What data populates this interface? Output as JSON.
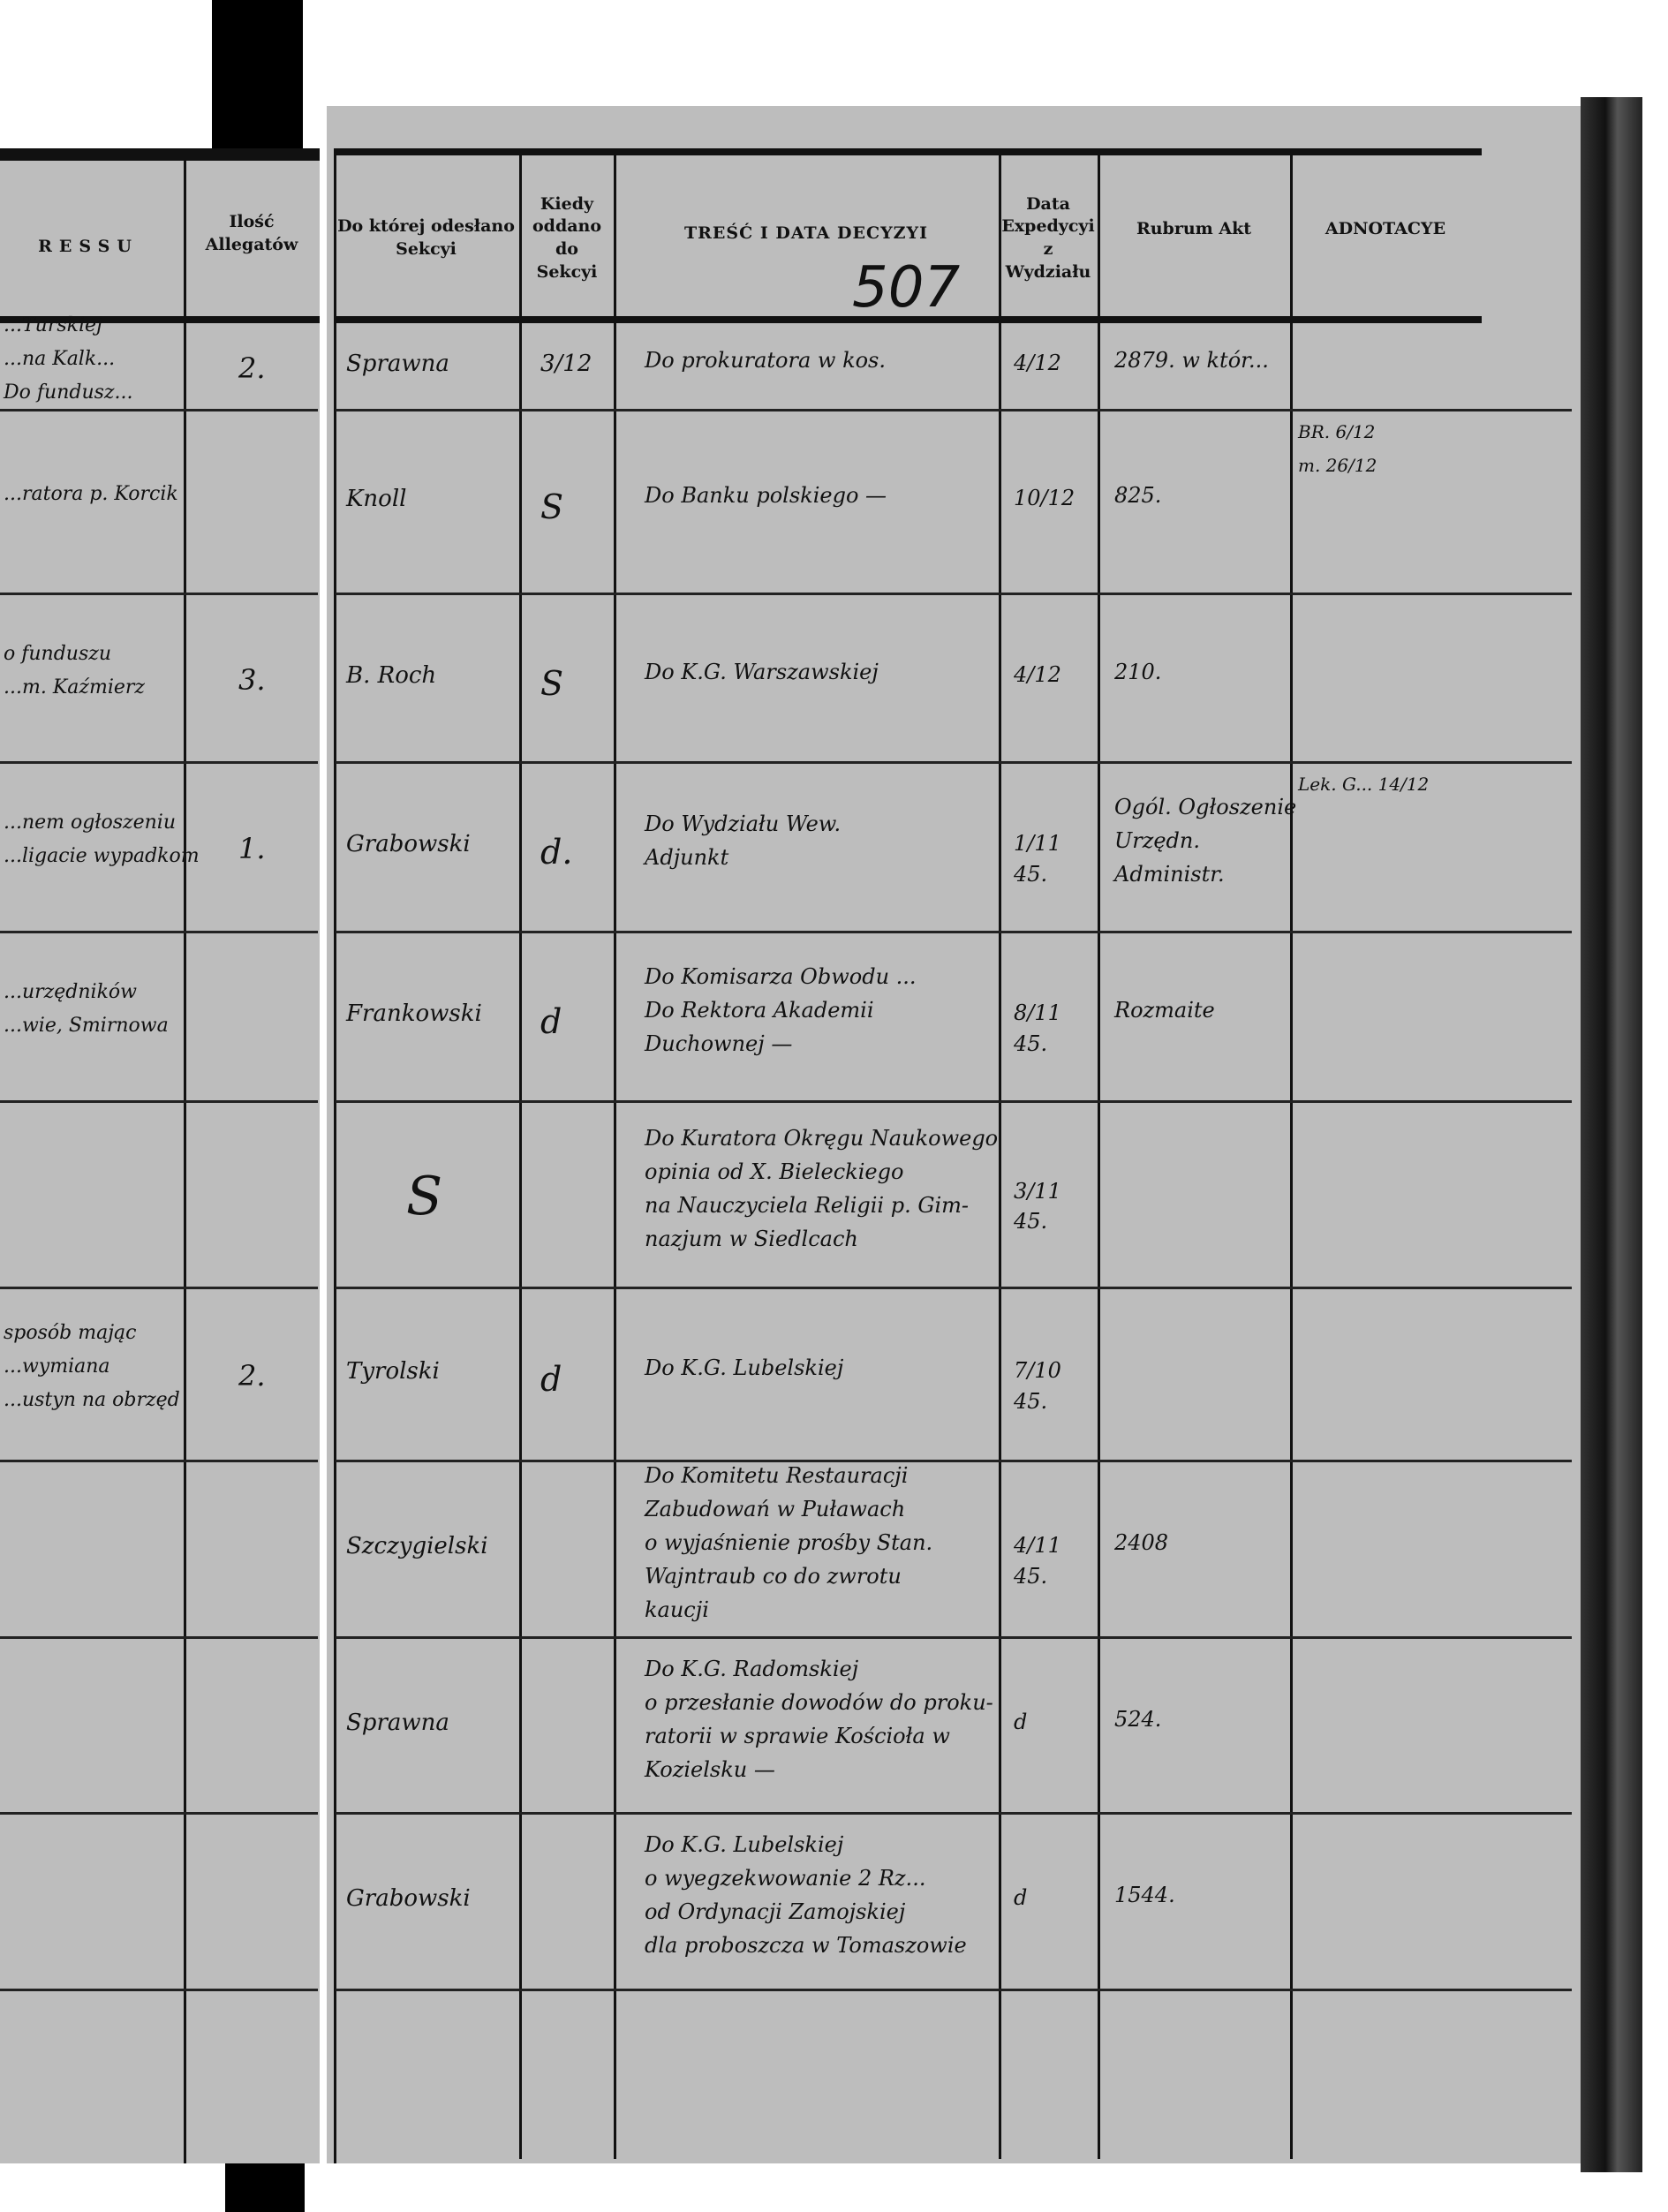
{
  "page_number": "507",
  "left_page": {
    "header_fragment": "RESSU",
    "count_header": "Ilość Allegatów",
    "rows": [
      {
        "text": [
          "...Turskiej",
          "...na Kalk...",
          "Do fundusz..."
        ],
        "count": "2."
      },
      {
        "text": [
          "...ratora p. Korcik"
        ],
        "count": ""
      },
      {
        "text": [
          "o funduszu",
          "...m. Kaźmierz"
        ],
        "count": "3."
      },
      {
        "text": [
          "...nem ogłoszeniu",
          "...ligacie wypadkom"
        ],
        "count": "1."
      },
      {
        "text": [
          "...urzędników",
          "...wie, Smirnowa"
        ],
        "count": ""
      },
      {
        "text": [],
        "count": ""
      },
      {
        "text": [
          "sposób mając",
          "...wymiana",
          "...ustyn na obrzęd"
        ],
        "count": "2."
      }
    ]
  },
  "headers": {
    "section": "Do której odesłano Sekcyi",
    "when": "Kiedy oddano do Sekcyi",
    "content": "TREŚĆ I DATA DECYZYI",
    "expedition": "Data Expedycyi z Wydziału",
    "rubrum": "Rubrum Akt",
    "notes": "ADNOTACYE"
  },
  "rows": [
    {
      "section": "Sprawna",
      "when": "3/12",
      "content": [
        "Do prokuratora w kos."
      ],
      "exp": "4/12",
      "rubrum": [
        "2879. w któr..."
      ],
      "notes": []
    },
    {
      "section": "Knoll",
      "when": "S",
      "content": [
        "Do Banku polskiego —"
      ],
      "exp": "10/12",
      "rubrum": [
        "825."
      ],
      "notes": [
        "BR. 6/12",
        "m. 26/12"
      ]
    },
    {
      "section": "B. Roch",
      "when": "S",
      "content": [
        "Do K.G. Warszawskiej"
      ],
      "exp": "4/12",
      "rubrum": [
        "210."
      ],
      "notes": []
    },
    {
      "section": "Grabowski",
      "when": "d.",
      "content": [
        "Do Wydziału Wew.",
        "Adjunkt"
      ],
      "exp": "1/11 45.",
      "rubrum": [
        "Ogól. Ogłoszenie",
        "Urzędn.",
        "Administr."
      ],
      "notes": [
        "Lek. G... 14/12"
      ]
    },
    {
      "section": "Frankowski",
      "when": "d",
      "content": [
        "Do Komisarza Obwodu ...",
        "Do Rektora Akademii",
        "Duchownej —"
      ],
      "exp": "8/11 45.",
      "rubrum": [
        "Rozmaite"
      ],
      "notes": []
    },
    {
      "section": "S",
      "when": "",
      "content": [
        "Do Kuratora Okręgu Naukowego",
        "opinia od X. Bieleckiego",
        "na Nauczyciela Religii p. Gim-",
        "nazjum w Siedlcach"
      ],
      "exp": "3/11 45.",
      "rubrum": [],
      "notes": []
    },
    {
      "section": "Tyrolski",
      "when": "d",
      "content": [
        "Do K.G. Lubelskiej"
      ],
      "exp": "7/10 45.",
      "rubrum": [],
      "notes": []
    },
    {
      "section": "Szczygielski",
      "when": "",
      "content": [
        "Do Komitetu Restauracji",
        "Zabudowań w Puławach",
        "o wyjaśnienie prośby Stan.",
        "Wajntraub co do zwrotu",
        "kaucji"
      ],
      "exp": "4/11 45.",
      "rubrum": [
        "2408"
      ],
      "notes": []
    },
    {
      "section": "Sprawna",
      "when": "",
      "content": [
        "Do K.G. Radomskiej",
        "o przesłanie dowodów do proku-",
        "ratorii w sprawie Kościoła w",
        "Kozielsku —"
      ],
      "exp": "d",
      "rubrum": [
        "524."
      ],
      "notes": []
    },
    {
      "section": "Grabowski",
      "when": "",
      "content": [
        "Do K.G. Lubelskiej",
        "o wyegzekwowanie 2 Rz...",
        "od Ordynacji Zamojskiej",
        "dla proboszcza w Tomaszowie"
      ],
      "exp": "d",
      "rubrum": [
        "1544."
      ],
      "notes": []
    }
  ]
}
